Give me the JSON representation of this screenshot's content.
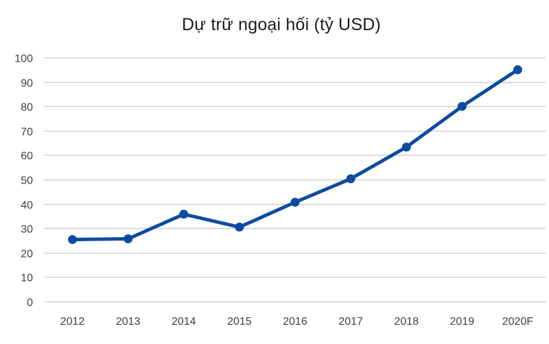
{
  "chart_data": {
    "type": "line",
    "title": "Dự trữ ngoại hối (tỷ USD)",
    "xlabel": "",
    "ylabel": "",
    "categories": [
      "2012",
      "2013",
      "2014",
      "2015",
      "2016",
      "2017",
      "2018",
      "2019",
      "2020F"
    ],
    "series": [
      {
        "name": "Dự trữ ngoại hối",
        "values": [
          25.4,
          25.7,
          35.8,
          30.5,
          40.7,
          50.3,
          63.3,
          80,
          95
        ],
        "color": "#0d4ba0",
        "marker": "circle"
      }
    ],
    "yticks": [
      0,
      10,
      20,
      30,
      40,
      50,
      60,
      70,
      80,
      90,
      100
    ],
    "ylim": [
      0,
      100
    ],
    "grid": "horizontal",
    "legend": "none",
    "colors": {
      "line": "#0d4ba0",
      "grid": "#d0d0d0",
      "tick_text": "#404040"
    }
  }
}
